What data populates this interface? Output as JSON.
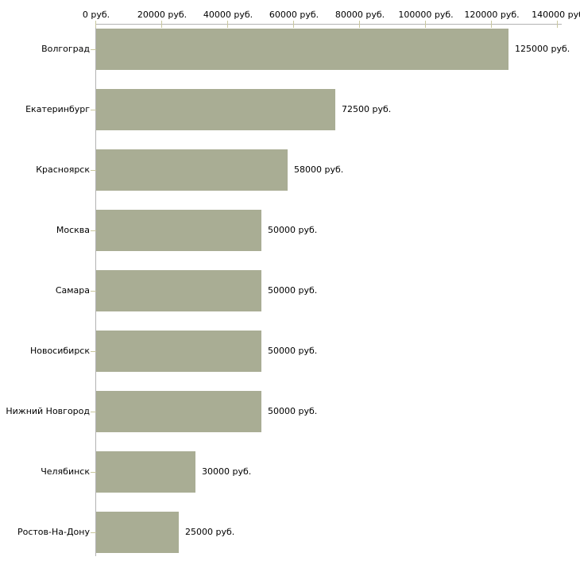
{
  "chart_data": {
    "type": "bar",
    "orientation": "horizontal",
    "title": "",
    "xlabel": "",
    "ylabel": "",
    "grid": false,
    "legend": null,
    "categories": [
      "Волгоград",
      "Екатеринбург",
      "Красноярск",
      "Москва",
      "Самара",
      "Новосибирск",
      "Нижний Новгород",
      "Челябинск",
      "Ростов-На-Дону"
    ],
    "values": [
      125000,
      72500,
      58000,
      50000,
      50000,
      50000,
      50000,
      30000,
      25000
    ],
    "value_labels": [
      "125000 руб.",
      "72500 руб.",
      "58000 руб.",
      "50000 руб.",
      "50000 руб.",
      "50000 руб.",
      "50000 руб.",
      "30000 руб.",
      "25000 руб."
    ],
    "x_axis": {
      "min": 0,
      "max": 140000,
      "tick_values": [
        0,
        20000,
        40000,
        60000,
        80000,
        100000,
        120000,
        140000
      ],
      "tick_labels": [
        "0 руб.",
        "20000 руб.",
        "40000 руб.",
        "60000 руб.",
        "80000 руб.",
        "100000 руб.",
        "120000 руб.",
        "140000 руб"
      ]
    },
    "colors": {
      "bar": "#a9ad94",
      "axis_line": "#b3b3b3",
      "tick_mark": "#c9c79e",
      "text": "#000000",
      "background": "#ffffff"
    }
  }
}
